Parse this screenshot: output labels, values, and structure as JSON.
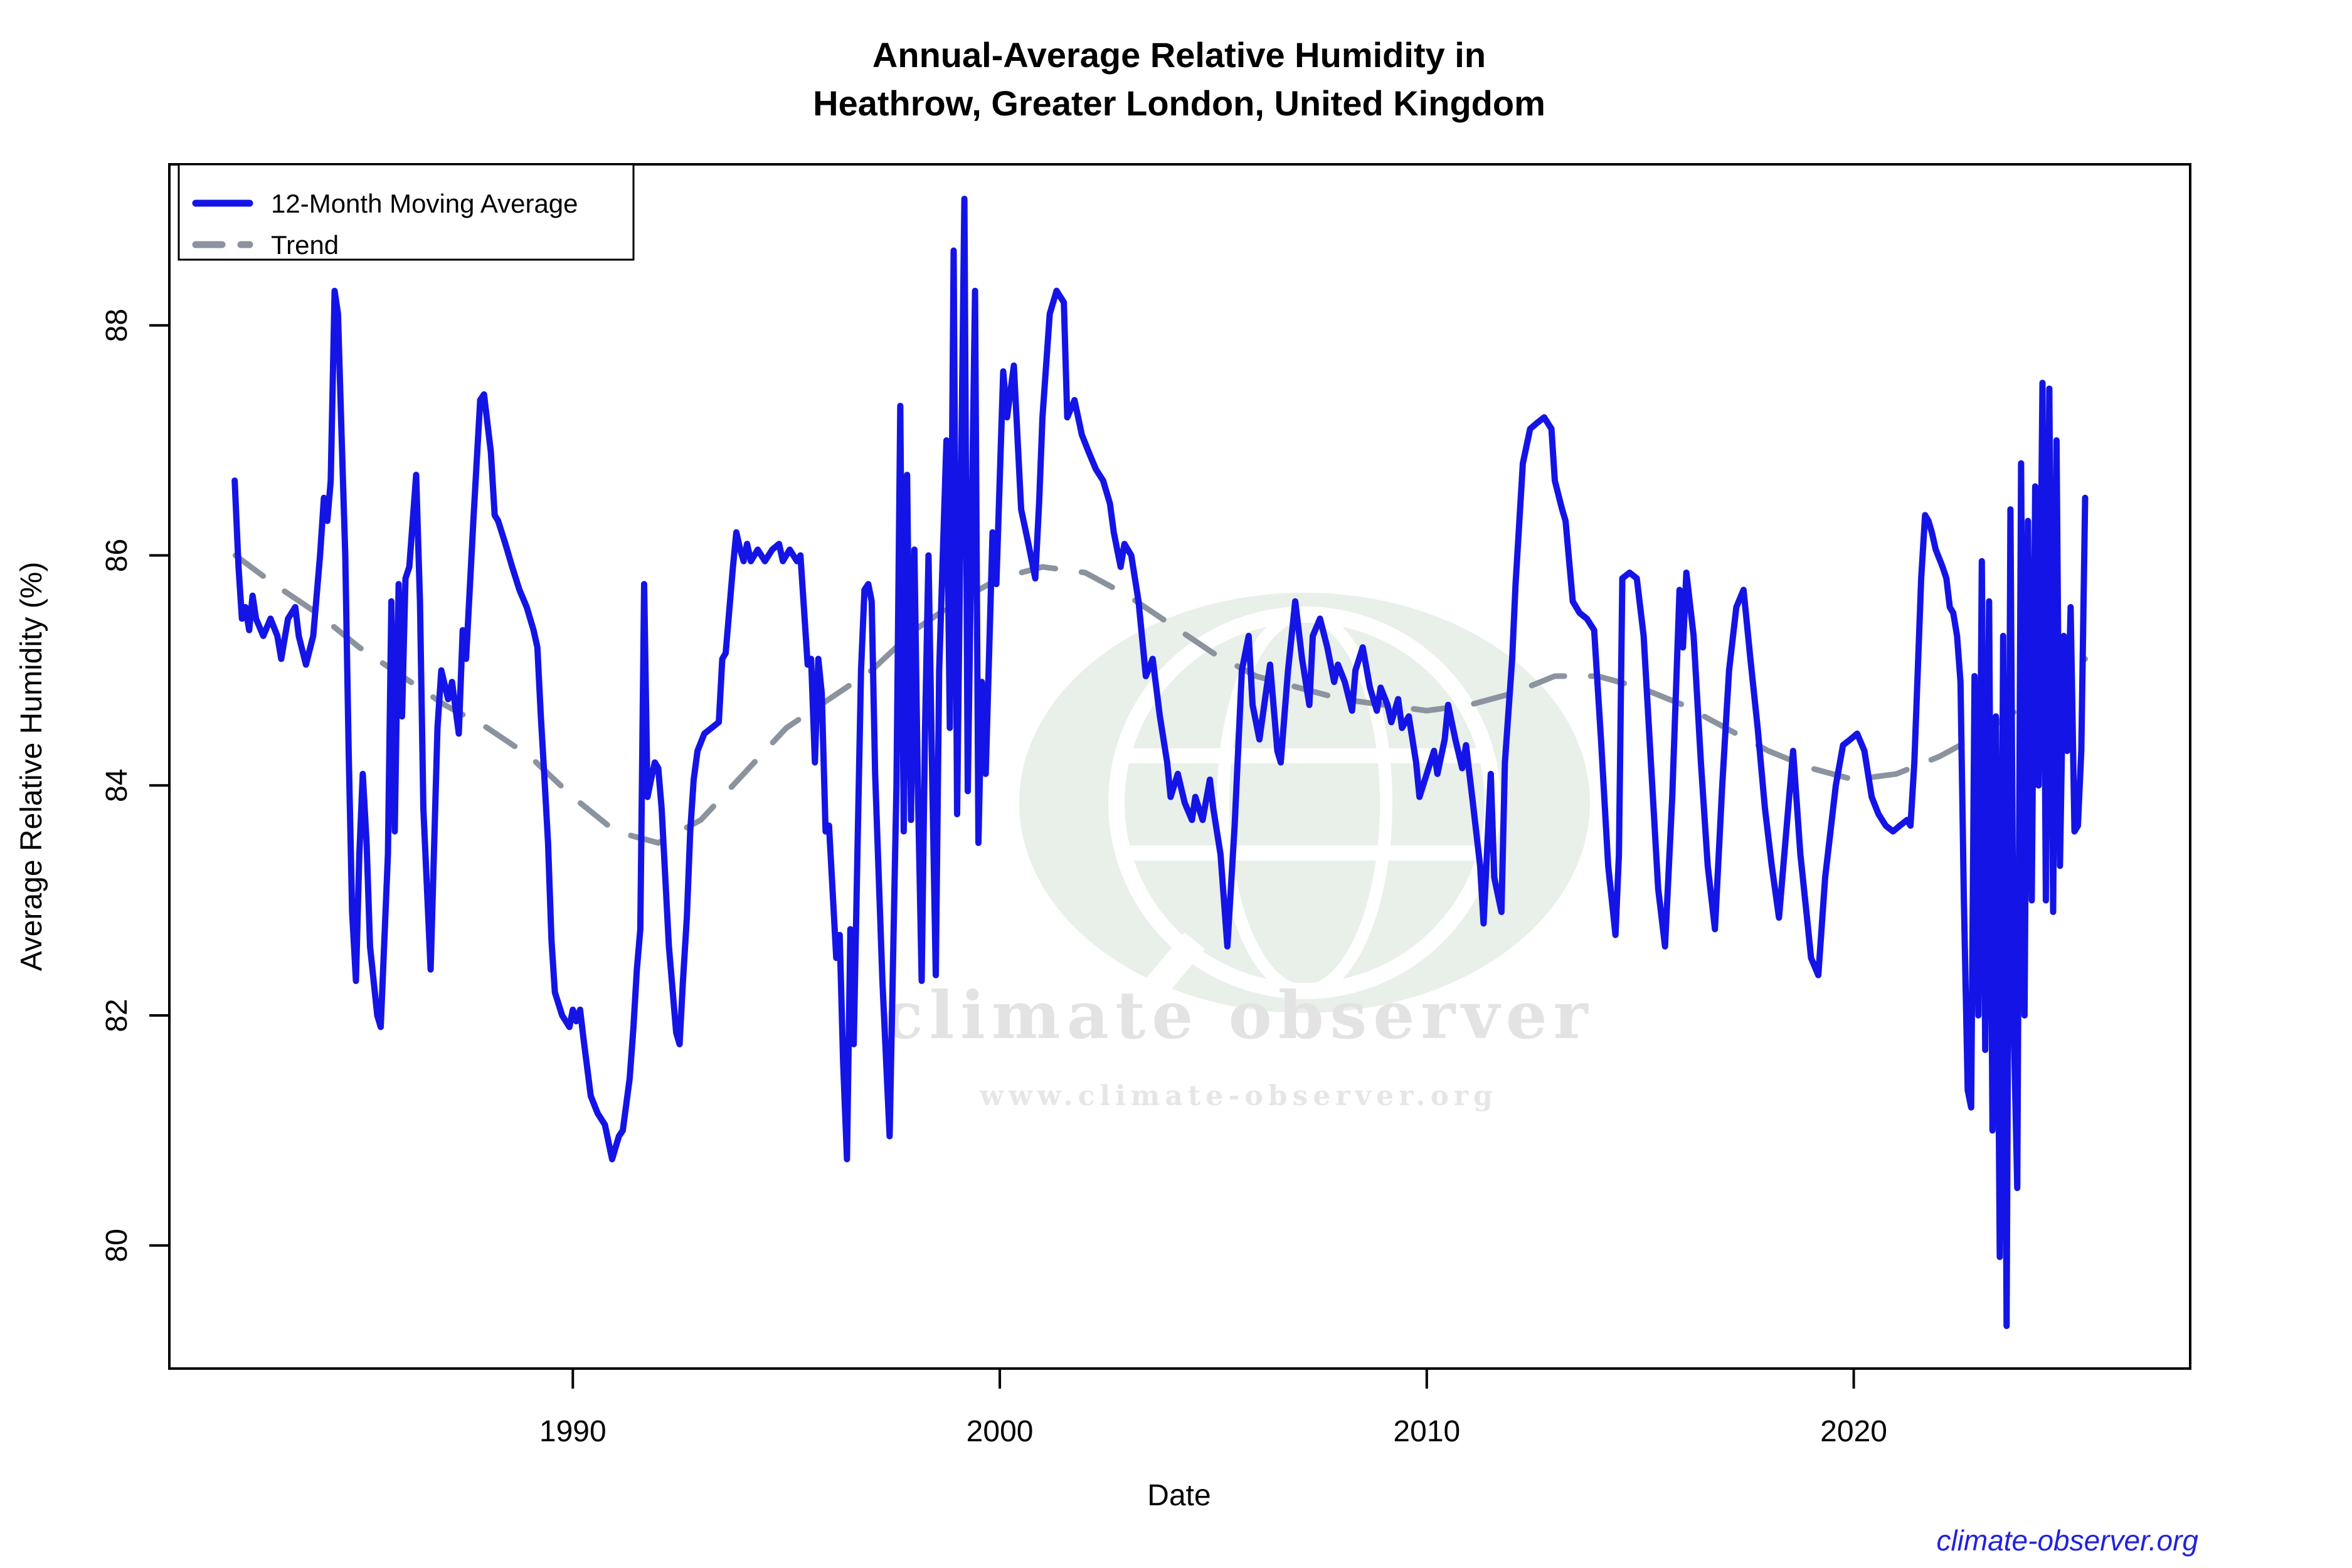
{
  "title": {
    "line1": "Annual-Average Relative Humidity in",
    "line2": "Heathrow, Greater London, United Kingdom"
  },
  "legend": {
    "items": [
      {
        "label": "12-Month Moving Average",
        "style": "solid",
        "color": "#1414e6"
      },
      {
        "label": "Trend",
        "style": "dashed",
        "color": "#8a939e"
      }
    ]
  },
  "watermark": {
    "brand": "climate observer",
    "url": "www.climate-observer.org",
    "logo_color": "#e9efe9",
    "text_color": "#e3e3e3"
  },
  "footer": {
    "link": "climate-observer.org",
    "link_color": "#2222dd"
  },
  "colors": {
    "line": "#1414e6",
    "trend": "#8a939e",
    "axis": "#000000",
    "background": "#ffffff"
  },
  "chart_data": {
    "type": "line",
    "title": "Annual-Average Relative Humidity in Heathrow, Greater London, United Kingdom",
    "xlabel": "Date",
    "ylabel": "Average Relative Humidity (%)",
    "x_ticks": [
      1990,
      2000,
      2010,
      2020
    ],
    "y_ticks": [
      80,
      82,
      84,
      86,
      88
    ],
    "x_range": [
      1980.55,
      2027.88
    ],
    "y_range": [
      78.93,
      89.4
    ],
    "grid": false,
    "legend_position": "top-left",
    "series": [
      {
        "name": "12-Month Moving Average",
        "x": [
          1982.08,
          1982.17,
          1982.25,
          1982.33,
          1982.42,
          1982.5,
          1982.58,
          1982.75,
          1982.92,
          1983.08,
          1983.17,
          1983.33,
          1983.5,
          1983.58,
          1983.75,
          1983.92,
          1984.08,
          1984.17,
          1984.25,
          1984.33,
          1984.42,
          1984.5,
          1984.58,
          1984.67,
          1984.75,
          1984.83,
          1984.92,
          1985.0,
          1985.08,
          1985.17,
          1985.25,
          1985.42,
          1985.5,
          1985.58,
          1985.67,
          1985.75,
          1985.83,
          1985.92,
          1986.0,
          1986.08,
          1986.17,
          1986.33,
          1986.42,
          1986.5,
          1986.67,
          1986.83,
          1986.92,
          1987.08,
          1987.17,
          1987.33,
          1987.42,
          1987.5,
          1987.67,
          1987.83,
          1987.92,
          1988.08,
          1988.17,
          1988.25,
          1988.42,
          1988.58,
          1988.75,
          1988.92,
          1989.08,
          1989.17,
          1989.25,
          1989.33,
          1989.42,
          1989.5,
          1989.58,
          1989.75,
          1989.92,
          1990.0,
          1990.08,
          1990.17,
          1990.25,
          1990.42,
          1990.58,
          1990.75,
          1990.92,
          1991.08,
          1991.17,
          1991.33,
          1991.42,
          1991.5,
          1991.58,
          1991.67,
          1991.75,
          1991.83,
          1991.92,
          1992.0,
          1992.08,
          1992.25,
          1992.42,
          1992.5,
          1992.58,
          1992.67,
          1992.75,
          1992.83,
          1992.92,
          1993.08,
          1993.25,
          1993.42,
          1993.5,
          1993.58,
          1993.75,
          1993.83,
          1993.92,
          1994.0,
          1994.08,
          1994.17,
          1994.33,
          1994.5,
          1994.67,
          1994.83,
          1994.92,
          1995.08,
          1995.25,
          1995.33,
          1995.42,
          1995.5,
          1995.58,
          1995.67,
          1995.75,
          1995.83,
          1995.92,
          1996.0,
          1996.17,
          1996.25,
          1996.33,
          1996.42,
          1996.5,
          1996.58,
          1996.67,
          1996.75,
          1996.83,
          1996.92,
          1997.0,
          1997.08,
          1997.25,
          1997.42,
          1997.58,
          1997.67,
          1997.75,
          1997.83,
          1997.92,
          1998.0,
          1998.08,
          1998.17,
          1998.25,
          1998.33,
          1998.42,
          1998.5,
          1998.58,
          1998.75,
          1998.83,
          1998.92,
          1999.0,
          1999.17,
          1999.25,
          1999.42,
          1999.5,
          1999.58,
          1999.67,
          1999.83,
          1999.92,
          2000.08,
          2000.17,
          2000.33,
          2000.5,
          2000.67,
          2000.83,
          2000.92,
          2001.0,
          2001.17,
          2001.33,
          2001.5,
          2001.58,
          2001.75,
          2001.92,
          2002.08,
          2002.25,
          2002.42,
          2002.58,
          2002.67,
          2002.83,
          2002.92,
          2003.08,
          2003.25,
          2003.42,
          2003.58,
          2003.75,
          2003.92,
          2004.0,
          2004.17,
          2004.33,
          2004.5,
          2004.58,
          2004.75,
          2004.92,
          2005.0,
          2005.17,
          2005.33,
          2005.5,
          2005.67,
          2005.83,
          2005.92,
          2006.08,
          2006.25,
          2006.33,
          2006.5,
          2006.58,
          2006.75,
          2006.92,
          2007.08,
          2007.25,
          2007.33,
          2007.5,
          2007.67,
          2007.83,
          2007.92,
          2008.08,
          2008.25,
          2008.33,
          2008.5,
          2008.67,
          2008.83,
          2008.92,
          2009.08,
          2009.17,
          2009.33,
          2009.42,
          2009.58,
          2009.75,
          2009.83,
          2010.0,
          2010.17,
          2010.25,
          2010.42,
          2010.5,
          2010.67,
          2010.83,
          2010.92,
          2011.08,
          2011.25,
          2011.33,
          2011.5,
          2011.58,
          2011.75,
          2011.83,
          2012.0,
          2012.08,
          2012.25,
          2012.42,
          2012.58,
          2012.75,
          2012.92,
          2013.0,
          2013.17,
          2013.25,
          2013.42,
          2013.58,
          2013.75,
          2013.92,
          2014.08,
          2014.25,
          2014.42,
          2014.5,
          2014.58,
          2014.75,
          2014.92,
          2015.08,
          2015.25,
          2015.42,
          2015.58,
          2015.75,
          2015.92,
          2016.0,
          2016.08,
          2016.25,
          2016.42,
          2016.58,
          2016.75,
          2016.92,
          2017.08,
          2017.25,
          2017.42,
          2017.58,
          2017.75,
          2017.92,
          2018.08,
          2018.25,
          2018.42,
          2018.58,
          2018.75,
          2018.92,
          2019.0,
          2019.17,
          2019.33,
          2019.58,
          2019.75,
          2019.92,
          2020.08,
          2020.25,
          2020.42,
          2020.58,
          2020.75,
          2020.92,
          2021.08,
          2021.25,
          2021.33,
          2021.42,
          2021.5,
          2021.58,
          2021.67,
          2021.75,
          2021.83,
          2021.92,
          2022.08,
          2022.17,
          2022.25,
          2022.33,
          2022.42,
          2022.5,
          2022.58,
          2022.67,
          2022.75,
          2022.83,
          2022.92,
          2023.0,
          2023.08,
          2023.17,
          2023.25,
          2023.33,
          2023.42,
          2023.5,
          2023.58,
          2023.67,
          2023.75,
          2023.83,
          2023.92,
          2024.0,
          2024.08,
          2024.17,
          2024.25,
          2024.33,
          2024.42,
          2024.5,
          2024.58,
          2024.67,
          2024.75,
          2024.83,
          2024.92,
          2025.0,
          2025.08,
          2025.17,
          2025.25,
          2025.33,
          2025.42
        ],
        "y": [
          86.65,
          85.9,
          85.45,
          85.55,
          85.35,
          85.65,
          85.45,
          85.3,
          85.45,
          85.3,
          85.1,
          85.45,
          85.55,
          85.3,
          85.05,
          85.3,
          86.0,
          86.5,
          86.3,
          86.65,
          88.3,
          88.1,
          87.1,
          86.0,
          84.3,
          82.9,
          82.3,
          83.4,
          84.1,
          83.5,
          82.6,
          82.0,
          81.9,
          82.6,
          83.4,
          85.6,
          83.6,
          85.75,
          84.6,
          85.8,
          85.9,
          86.7,
          85.6,
          83.8,
          82.4,
          84.5,
          85.0,
          84.75,
          84.9,
          84.45,
          85.35,
          85.1,
          86.3,
          87.35,
          87.4,
          86.9,
          86.35,
          86.3,
          86.1,
          85.9,
          85.7,
          85.55,
          85.35,
          85.2,
          84.6,
          84.1,
          83.5,
          82.65,
          82.2,
          82.0,
          81.9,
          82.05,
          81.95,
          82.05,
          81.8,
          81.3,
          81.15,
          81.05,
          80.75,
          80.95,
          81.0,
          81.45,
          81.9,
          82.4,
          82.75,
          85.75,
          83.9,
          84.05,
          84.2,
          84.15,
          83.8,
          82.6,
          81.85,
          81.75,
          82.3,
          82.85,
          83.6,
          84.05,
          84.3,
          84.45,
          84.5,
          84.55,
          85.1,
          85.15,
          85.9,
          86.2,
          86.05,
          85.95,
          86.1,
          85.95,
          86.05,
          85.95,
          86.05,
          86.1,
          85.95,
          86.05,
          85.95,
          86.0,
          85.5,
          85.05,
          85.1,
          84.2,
          85.1,
          84.8,
          83.6,
          83.65,
          82.5,
          82.7,
          81.6,
          80.75,
          82.75,
          81.75,
          83.5,
          85.0,
          85.7,
          85.75,
          85.6,
          84.1,
          82.3,
          80.95,
          84.0,
          87.3,
          83.6,
          86.7,
          83.7,
          86.05,
          84.0,
          82.3,
          84.5,
          86.0,
          84.0,
          82.35,
          85.0,
          87.0,
          84.5,
          88.65,
          83.75,
          89.1,
          83.95,
          88.3,
          83.5,
          84.9,
          84.1,
          86.2,
          85.75,
          87.6,
          87.2,
          87.65,
          86.4,
          86.1,
          85.8,
          86.45,
          87.2,
          88.1,
          88.3,
          88.2,
          87.2,
          87.35,
          87.05,
          86.9,
          86.75,
          86.65,
          86.45,
          86.2,
          85.9,
          86.1,
          86.0,
          85.6,
          84.95,
          85.1,
          84.6,
          84.2,
          83.9,
          84.1,
          83.85,
          83.7,
          83.9,
          83.7,
          84.05,
          83.8,
          83.4,
          82.6,
          83.65,
          85.0,
          85.3,
          84.7,
          84.4,
          84.85,
          85.05,
          84.3,
          84.2,
          85.0,
          85.6,
          85.1,
          84.7,
          85.3,
          85.45,
          85.2,
          84.9,
          85.05,
          84.9,
          84.65,
          85.0,
          85.2,
          84.85,
          84.65,
          84.85,
          84.7,
          84.55,
          84.75,
          84.5,
          84.6,
          84.2,
          83.9,
          84.1,
          84.3,
          84.1,
          84.4,
          84.7,
          84.4,
          84.15,
          84.35,
          83.85,
          83.3,
          82.8,
          84.1,
          83.2,
          82.9,
          84.2,
          85.1,
          85.75,
          86.8,
          87.1,
          87.15,
          87.2,
          87.1,
          86.65,
          86.4,
          86.3,
          85.6,
          85.5,
          85.45,
          85.35,
          84.4,
          83.3,
          82.7,
          83.4,
          85.8,
          85.85,
          85.8,
          85.3,
          84.2,
          83.1,
          82.6,
          83.9,
          85.7,
          85.2,
          85.85,
          85.3,
          84.2,
          83.3,
          82.75,
          84.0,
          85.0,
          85.55,
          85.7,
          85.1,
          84.5,
          83.8,
          83.3,
          82.85,
          83.6,
          84.3,
          83.4,
          82.8,
          82.5,
          82.35,
          83.2,
          84.0,
          84.35,
          84.4,
          84.45,
          84.3,
          83.9,
          83.75,
          83.65,
          83.6,
          83.65,
          83.7,
          83.65,
          84.2,
          85.0,
          85.8,
          86.35,
          86.3,
          86.2,
          86.05,
          85.9,
          85.8,
          85.55,
          85.5,
          85.3,
          84.9,
          83.0,
          81.35,
          81.2,
          84.95,
          82.0,
          85.95,
          81.7,
          85.6,
          81.0,
          84.6,
          79.9,
          85.3,
          79.3,
          86.4,
          81.9,
          80.5,
          86.8,
          82.0,
          86.3,
          83.0,
          86.6,
          84.0,
          87.5,
          83.0,
          87.45,
          82.9,
          87.0,
          83.3,
          85.3,
          84.3,
          85.55,
          83.6,
          83.65,
          84.3,
          86.5
        ]
      },
      {
        "name": "Trend",
        "x": [
          1982.1,
          1983,
          1984,
          1985,
          1986,
          1987,
          1988,
          1989,
          1990,
          1991,
          1992,
          1993,
          1994,
          1995,
          1996,
          1997,
          1998,
          1999,
          2000,
          2001,
          2002,
          2003,
          2004,
          2005,
          2006,
          2007,
          2008,
          2009,
          2010,
          2011,
          2012,
          2013,
          2014,
          2015,
          2016,
          2017,
          2018,
          2019,
          2020,
          2021,
          2022,
          2023,
          2024,
          2025,
          2025.42
        ],
        "y": [
          86.0,
          85.75,
          85.5,
          85.2,
          84.95,
          84.7,
          84.5,
          84.25,
          83.9,
          83.6,
          83.5,
          83.7,
          84.1,
          84.5,
          84.75,
          85.0,
          85.35,
          85.6,
          85.8,
          85.9,
          85.85,
          85.65,
          85.4,
          85.15,
          84.95,
          84.85,
          84.75,
          84.7,
          84.65,
          84.7,
          84.8,
          84.95,
          84.95,
          84.85,
          84.7,
          84.5,
          84.3,
          84.15,
          84.05,
          84.1,
          84.25,
          84.45,
          84.7,
          85.0,
          85.1
        ]
      }
    ]
  }
}
